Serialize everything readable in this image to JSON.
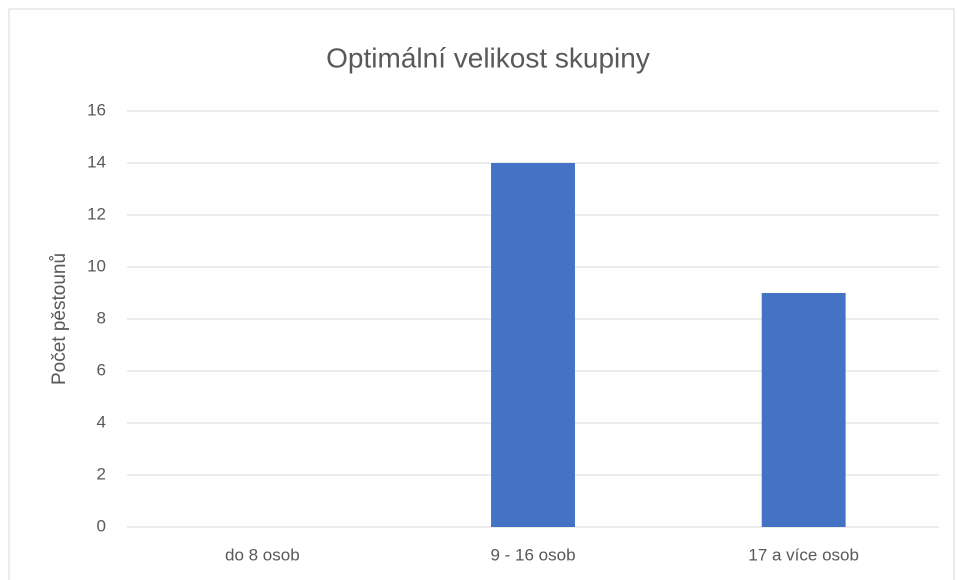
{
  "chart_data": {
    "type": "bar",
    "title": "Optimální velikost skupiny",
    "y_label": "Počet pěstounů",
    "categories": [
      "do 8 osob",
      "9 - 16 osob",
      "17 a více osob"
    ],
    "values": [
      0,
      14,
      9
    ],
    "color": "#4472c4",
    "ylim": [
      0,
      16
    ],
    "yticks": [
      0,
      2,
      4,
      6,
      8,
      10,
      12,
      14,
      16
    ],
    "grid": true
  }
}
